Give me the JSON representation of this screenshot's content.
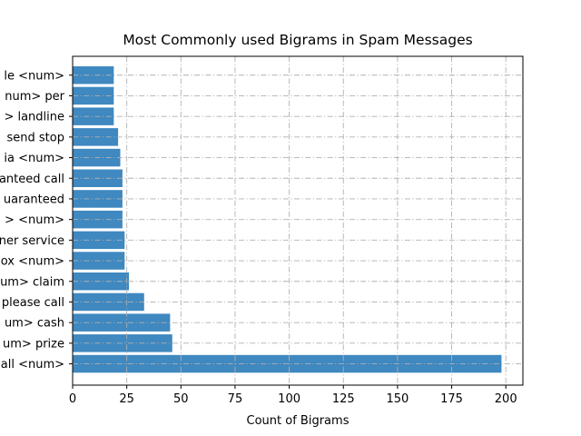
{
  "chart_data": {
    "type": "bar",
    "orientation": "horizontal",
    "title": "Most Commonly used Bigrams in Spam Messages",
    "xlabel": "Count of Bigrams",
    "ylabel": "",
    "xlim": [
      0,
      208
    ],
    "xticks": [
      0,
      25,
      50,
      75,
      100,
      125,
      150,
      175,
      200
    ],
    "grid": true,
    "bar_color": "#3f88c0",
    "categories": [
      "call <num>",
      "<num> prize",
      "<num> cash",
      "please call",
      "<num> claim",
      "box <num>",
      "customer service",
      "<num> <num>",
      "guaranteed",
      "guaranteed call",
      "via <num>",
      "send stop",
      "<num> landline",
      "<num> per",
      "mobile <num>"
    ],
    "visible_labels": [
      "all <num>",
      "um> prize",
      "um> cash",
      "please call",
      "um> claim",
      "ox <num>",
      "ner service",
      "> <num>",
      "uaranteed",
      "anteed call",
      "ia <num>",
      "send stop",
      "> landline",
      "num> per",
      "le <num>"
    ],
    "values": [
      198,
      46,
      45,
      33,
      26,
      24,
      24,
      23,
      23,
      23,
      22,
      21,
      19,
      19,
      19
    ]
  }
}
